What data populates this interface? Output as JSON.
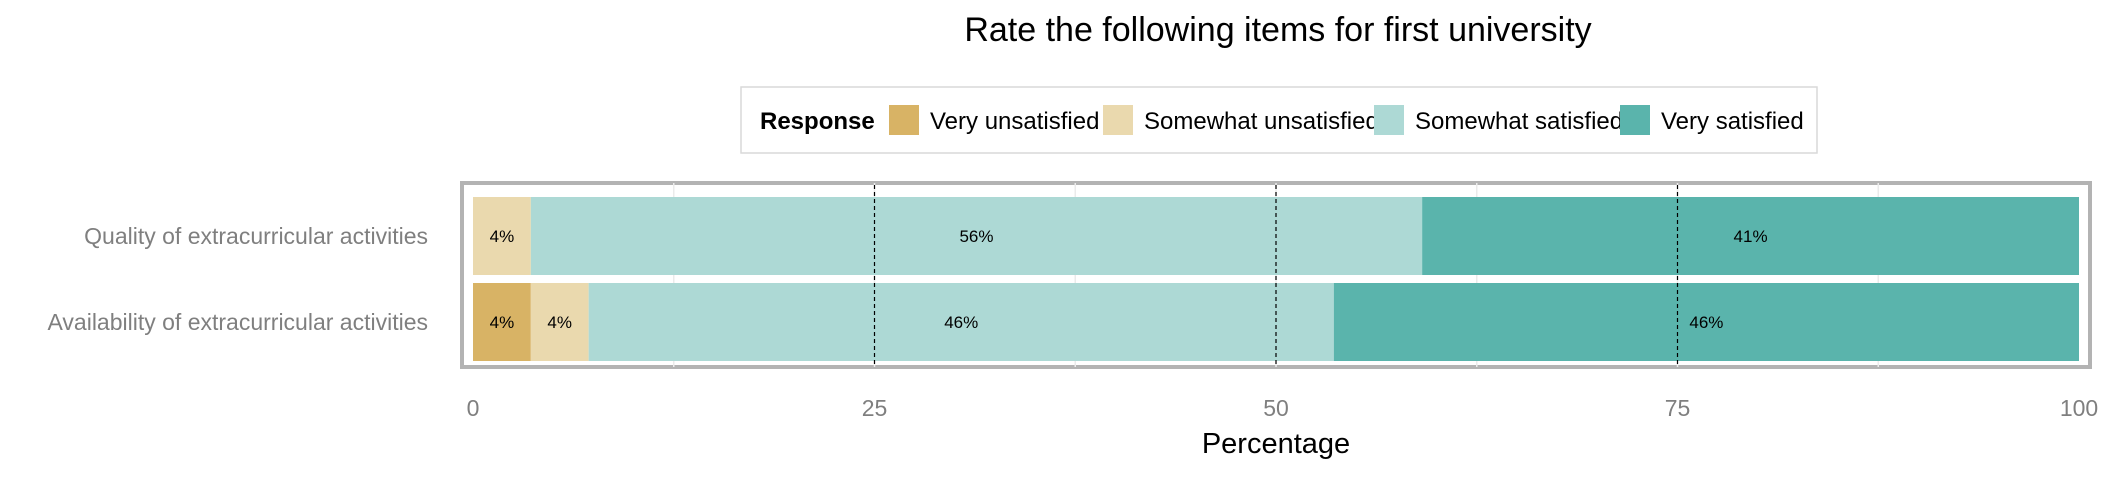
{
  "chart_data": {
    "type": "bar",
    "orientation": "horizontal",
    "stacked": true,
    "title": "Rate the following items for first university",
    "xlabel": "Percentage",
    "ylabel": "",
    "xlim": [
      0,
      100
    ],
    "xticks": [
      0,
      25,
      50,
      75,
      100
    ],
    "grid": true,
    "legend": {
      "title": "Response",
      "placement": "top",
      "entries": [
        "Very unsatisfied",
        "Somewhat unsatisfied",
        "Somewhat satisfied",
        "Very satisfied"
      ]
    },
    "categories": [
      "Quality of extracurricular activities",
      "Availability of extracurricular activities"
    ],
    "series": [
      {
        "name": "Very unsatisfied",
        "color": "#D8B365",
        "values": [
          0,
          3.6
        ],
        "labels": [
          "",
          "4%"
        ]
      },
      {
        "name": "Somewhat unsatisfied",
        "color": "#EAD9AE",
        "values": [
          3.6,
          3.6
        ],
        "labels": [
          "4%",
          "4%"
        ]
      },
      {
        "name": "Somewhat satisfied",
        "color": "#ADD9D5",
        "values": [
          55.5,
          46.4
        ],
        "labels": [
          "56%",
          "46%"
        ]
      },
      {
        "name": "Very satisfied",
        "color": "#5AB4AC",
        "values": [
          40.9,
          46.4
        ],
        "labels": [
          "41%",
          "46%"
        ]
      }
    ]
  }
}
